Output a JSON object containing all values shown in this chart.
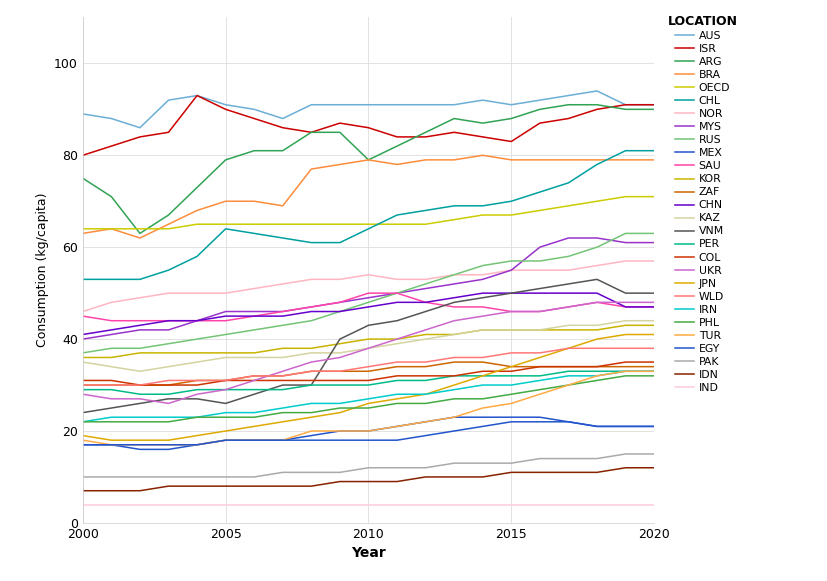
{
  "title": "",
  "xlabel": "Year",
  "ylabel": "Consumption (kg/capita)",
  "xlim": [
    2000,
    2020
  ],
  "ylim": [
    0,
    110
  ],
  "yticks": [
    0,
    20,
    40,
    60,
    80,
    100
  ],
  "xticks": [
    2000,
    2005,
    2010,
    2015,
    2020
  ],
  "background_color": "#ffffff",
  "grid_color": "#dddddd",
  "series": [
    {
      "label": "AUS",
      "color": "#6baed6",
      "data": {
        "2000": 89,
        "2001": 88,
        "2002": 86,
        "2003": 92,
        "2004": 93,
        "2005": 91,
        "2006": 90,
        "2007": 88,
        "2008": 91,
        "2009": 91,
        "2010": 91,
        "2011": 91,
        "2012": 91,
        "2013": 91,
        "2014": 92,
        "2015": 91,
        "2016": 92,
        "2017": 93,
        "2018": 94,
        "2019": 91,
        "2020": 91
      }
    },
    {
      "label": "ISR",
      "color": "#cc0000",
      "data": {
        "2000": 80,
        "2001": 82,
        "2002": 84,
        "2003": 85,
        "2004": 93,
        "2005": 90,
        "2006": 88,
        "2007": 86,
        "2008": 85,
        "2009": 87,
        "2010": 86,
        "2011": 84,
        "2012": 84,
        "2013": 85,
        "2014": 84,
        "2015": 83,
        "2016": 87,
        "2017": 88,
        "2018": 90,
        "2019": 91,
        "2020": 91
      }
    },
    {
      "label": "ARG",
      "color": "#31a354",
      "data": {
        "2000": 75,
        "2001": 71,
        "2002": 63,
        "2003": 67,
        "2004": 73,
        "2005": 79,
        "2006": 81,
        "2007": 81,
        "2008": 85,
        "2009": 85,
        "2010": 79,
        "2011": 82,
        "2012": 85,
        "2013": 88,
        "2014": 87,
        "2015": 88,
        "2016": 90,
        "2017": 91,
        "2018": 91,
        "2019": 90,
        "2020": 90
      }
    },
    {
      "label": "BRA",
      "color": "#fd8d3c",
      "data": {
        "2000": 63,
        "2001": 64,
        "2002": 62,
        "2003": 65,
        "2004": 68,
        "2005": 70,
        "2006": 70,
        "2007": 69,
        "2008": 77,
        "2009": 78,
        "2010": 79,
        "2011": 78,
        "2012": 79,
        "2013": 79,
        "2014": 80,
        "2015": 79,
        "2016": 79,
        "2017": 79,
        "2018": 79,
        "2019": 79,
        "2020": 79
      }
    },
    {
      "label": "OECD",
      "color": "#cccc00",
      "data": {
        "2000": 64,
        "2001": 64,
        "2002": 64,
        "2003": 64,
        "2004": 65,
        "2005": 65,
        "2006": 65,
        "2007": 65,
        "2008": 65,
        "2009": 65,
        "2010": 65,
        "2011": 65,
        "2012": 65,
        "2013": 66,
        "2014": 67,
        "2015": 67,
        "2016": 68,
        "2017": 69,
        "2018": 70,
        "2019": 71,
        "2020": 71
      }
    },
    {
      "label": "CHL",
      "color": "#00a0a0",
      "data": {
        "2000": 53,
        "2001": 53,
        "2002": 53,
        "2003": 55,
        "2004": 58,
        "2005": 64,
        "2006": 63,
        "2007": 62,
        "2008": 61,
        "2009": 61,
        "2010": 64,
        "2011": 67,
        "2012": 68,
        "2013": 69,
        "2014": 69,
        "2015": 70,
        "2016": 72,
        "2017": 74,
        "2018": 78,
        "2019": 81,
        "2020": 81
      }
    },
    {
      "label": "NOR",
      "color": "#ffb6c1",
      "data": {
        "2000": 46,
        "2001": 48,
        "2002": 49,
        "2003": 50,
        "2004": 50,
        "2005": 50,
        "2006": 51,
        "2007": 52,
        "2008": 53,
        "2009": 53,
        "2010": 54,
        "2011": 53,
        "2012": 53,
        "2013": 54,
        "2014": 54,
        "2015": 55,
        "2016": 55,
        "2017": 55,
        "2018": 56,
        "2019": 57,
        "2020": 57
      }
    },
    {
      "label": "MYS",
      "color": "#9933cc",
      "data": {
        "2000": 40,
        "2001": 41,
        "2002": 42,
        "2003": 42,
        "2004": 44,
        "2005": 46,
        "2006": 46,
        "2007": 46,
        "2008": 47,
        "2009": 48,
        "2010": 49,
        "2011": 50,
        "2012": 51,
        "2013": 52,
        "2014": 53,
        "2015": 55,
        "2016": 60,
        "2017": 62,
        "2018": 62,
        "2019": 61,
        "2020": 61
      }
    },
    {
      "label": "RUS",
      "color": "#74c476",
      "data": {
        "2000": 37,
        "2001": 38,
        "2002": 38,
        "2003": 39,
        "2004": 40,
        "2005": 41,
        "2006": 42,
        "2007": 43,
        "2008": 44,
        "2009": 46,
        "2010": 48,
        "2011": 50,
        "2012": 52,
        "2013": 54,
        "2014": 56,
        "2015": 57,
        "2016": 57,
        "2017": 58,
        "2018": 60,
        "2019": 63,
        "2020": 63
      }
    },
    {
      "label": "MEX",
      "color": "#2255cc",
      "data": {
        "2000": 17,
        "2001": 17,
        "2002": 16,
        "2003": 16,
        "2004": 17,
        "2005": 18,
        "2006": 18,
        "2007": 18,
        "2008": 19,
        "2009": 20,
        "2010": 20,
        "2011": 21,
        "2012": 22,
        "2013": 23,
        "2014": 23,
        "2015": 23,
        "2016": 23,
        "2017": 22,
        "2018": 21,
        "2019": 21,
        "2020": 21
      }
    },
    {
      "label": "SAU",
      "color": "#ff44aa",
      "data": {
        "2000": 45,
        "2001": 44,
        "2002": 44,
        "2003": 44,
        "2004": 44,
        "2005": 44,
        "2006": 45,
        "2007": 46,
        "2008": 47,
        "2009": 48,
        "2010": 50,
        "2011": 50,
        "2012": 48,
        "2013": 47,
        "2014": 47,
        "2015": 46,
        "2016": 46,
        "2017": 47,
        "2018": 48,
        "2019": 47,
        "2020": 47
      }
    },
    {
      "label": "KOR",
      "color": "#c8b400",
      "data": {
        "2000": 36,
        "2001": 36,
        "2002": 37,
        "2003": 37,
        "2004": 37,
        "2005": 37,
        "2006": 37,
        "2007": 38,
        "2008": 38,
        "2009": 39,
        "2010": 40,
        "2011": 40,
        "2012": 41,
        "2013": 41,
        "2014": 42,
        "2015": 42,
        "2016": 42,
        "2017": 42,
        "2018": 42,
        "2019": 43,
        "2020": 43
      }
    },
    {
      "label": "ZAF",
      "color": "#cc6600",
      "data": {
        "2000": 30,
        "2001": 30,
        "2002": 30,
        "2003": 30,
        "2004": 31,
        "2005": 31,
        "2006": 32,
        "2007": 32,
        "2008": 33,
        "2009": 33,
        "2010": 33,
        "2011": 34,
        "2012": 34,
        "2013": 35,
        "2014": 35,
        "2015": 34,
        "2016": 34,
        "2017": 34,
        "2018": 34,
        "2019": 34,
        "2020": 34
      }
    },
    {
      "label": "CHN",
      "color": "#6600cc",
      "data": {
        "2000": 41,
        "2001": 42,
        "2002": 43,
        "2003": 44,
        "2004": 44,
        "2005": 45,
        "2006": 45,
        "2007": 45,
        "2008": 46,
        "2009": 46,
        "2010": 47,
        "2011": 48,
        "2012": 48,
        "2013": 49,
        "2014": 50,
        "2015": 50,
        "2016": 50,
        "2017": 50,
        "2018": 50,
        "2019": 47,
        "2020": 47
      }
    },
    {
      "label": "KAZ",
      "color": "#d4d4a0",
      "data": {
        "2000": 35,
        "2001": 34,
        "2002": 33,
        "2003": 34,
        "2004": 35,
        "2005": 36,
        "2006": 36,
        "2007": 36,
        "2008": 37,
        "2009": 37,
        "2010": 38,
        "2011": 39,
        "2012": 40,
        "2013": 41,
        "2014": 42,
        "2015": 42,
        "2016": 42,
        "2017": 43,
        "2018": 43,
        "2019": 44,
        "2020": 44
      }
    },
    {
      "label": "VNM",
      "color": "#555555",
      "data": {
        "2000": 24,
        "2001": 25,
        "2002": 26,
        "2003": 27,
        "2004": 27,
        "2005": 26,
        "2006": 28,
        "2007": 30,
        "2008": 30,
        "2009": 40,
        "2010": 43,
        "2011": 44,
        "2012": 46,
        "2013": 48,
        "2014": 49,
        "2015": 50,
        "2016": 51,
        "2017": 52,
        "2018": 53,
        "2019": 50,
        "2020": 50
      }
    },
    {
      "label": "PER",
      "color": "#00bb88",
      "data": {
        "2000": 29,
        "2001": 29,
        "2002": 28,
        "2003": 28,
        "2004": 29,
        "2005": 29,
        "2006": 29,
        "2007": 29,
        "2008": 30,
        "2009": 30,
        "2010": 30,
        "2011": 31,
        "2012": 31,
        "2013": 32,
        "2014": 32,
        "2015": 32,
        "2016": 32,
        "2017": 33,
        "2018": 33,
        "2019": 33,
        "2020": 33
      }
    },
    {
      "label": "COL",
      "color": "#cc3300",
      "data": {
        "2000": 31,
        "2001": 31,
        "2002": 30,
        "2003": 30,
        "2004": 30,
        "2005": 31,
        "2006": 31,
        "2007": 31,
        "2008": 31,
        "2009": 31,
        "2010": 31,
        "2011": 32,
        "2012": 32,
        "2013": 32,
        "2014": 33,
        "2015": 33,
        "2016": 34,
        "2017": 34,
        "2018": 34,
        "2019": 35,
        "2020": 35
      }
    },
    {
      "label": "UKR",
      "color": "#cc66cc",
      "data": {
        "2000": 28,
        "2001": 27,
        "2002": 27,
        "2003": 26,
        "2004": 28,
        "2005": 29,
        "2006": 31,
        "2007": 33,
        "2008": 35,
        "2009": 36,
        "2010": 38,
        "2011": 40,
        "2012": 42,
        "2013": 44,
        "2014": 45,
        "2015": 46,
        "2016": 46,
        "2017": 47,
        "2018": 48,
        "2019": 48,
        "2020": 48
      }
    },
    {
      "label": "JPN",
      "color": "#ddaa00",
      "data": {
        "2000": 19,
        "2001": 18,
        "2002": 18,
        "2003": 18,
        "2004": 19,
        "2005": 20,
        "2006": 21,
        "2007": 22,
        "2008": 23,
        "2009": 24,
        "2010": 26,
        "2011": 27,
        "2012": 28,
        "2013": 30,
        "2014": 32,
        "2015": 34,
        "2016": 36,
        "2017": 38,
        "2018": 40,
        "2019": 41,
        "2020": 41
      }
    },
    {
      "label": "WLD",
      "color": "#ff7777",
      "data": {
        "2000": 30,
        "2001": 30,
        "2002": 30,
        "2003": 31,
        "2004": 31,
        "2005": 31,
        "2006": 32,
        "2007": 32,
        "2008": 33,
        "2009": 33,
        "2010": 34,
        "2011": 35,
        "2012": 35,
        "2013": 36,
        "2014": 36,
        "2015": 37,
        "2016": 37,
        "2017": 38,
        "2018": 38,
        "2019": 38,
        "2020": 38
      }
    },
    {
      "label": "IRN",
      "color": "#00cccc",
      "data": {
        "2000": 22,
        "2001": 23,
        "2002": 23,
        "2003": 23,
        "2004": 23,
        "2005": 24,
        "2006": 24,
        "2007": 25,
        "2008": 26,
        "2009": 26,
        "2010": 27,
        "2011": 28,
        "2012": 28,
        "2013": 29,
        "2014": 30,
        "2015": 30,
        "2016": 31,
        "2017": 32,
        "2018": 32,
        "2019": 33,
        "2020": 33
      }
    },
    {
      "label": "PHL",
      "color": "#44aa44",
      "data": {
        "2000": 22,
        "2001": 22,
        "2002": 22,
        "2003": 22,
        "2004": 23,
        "2005": 23,
        "2006": 23,
        "2007": 24,
        "2008": 24,
        "2009": 25,
        "2010": 25,
        "2011": 26,
        "2012": 26,
        "2013": 27,
        "2014": 27,
        "2015": 28,
        "2016": 29,
        "2017": 30,
        "2018": 31,
        "2019": 32,
        "2020": 32
      }
    },
    {
      "label": "TUR",
      "color": "#ffaa44",
      "data": {
        "2000": 18,
        "2001": 17,
        "2002": 17,
        "2003": 17,
        "2004": 17,
        "2005": 18,
        "2006": 18,
        "2007": 18,
        "2008": 20,
        "2009": 20,
        "2010": 20,
        "2011": 21,
        "2012": 22,
        "2013": 23,
        "2014": 25,
        "2015": 26,
        "2016": 28,
        "2017": 30,
        "2018": 32,
        "2019": 33,
        "2020": 33
      }
    },
    {
      "label": "EGY",
      "color": "#2255cc",
      "data": {
        "2000": 17,
        "2001": 17,
        "2002": 17,
        "2003": 17,
        "2004": 17,
        "2005": 18,
        "2006": 18,
        "2007": 18,
        "2008": 18,
        "2009": 18,
        "2010": 18,
        "2011": 18,
        "2012": 19,
        "2013": 20,
        "2014": 21,
        "2015": 22,
        "2016": 22,
        "2017": 22,
        "2018": 21,
        "2019": 21,
        "2020": 21
      }
    },
    {
      "label": "PAK",
      "color": "#aaaaaa",
      "data": {
        "2000": 10,
        "2001": 10,
        "2002": 10,
        "2003": 10,
        "2004": 10,
        "2005": 10,
        "2006": 10,
        "2007": 11,
        "2008": 11,
        "2009": 11,
        "2010": 12,
        "2011": 12,
        "2012": 12,
        "2013": 13,
        "2014": 13,
        "2015": 13,
        "2016": 14,
        "2017": 14,
        "2018": 14,
        "2019": 15,
        "2020": 15
      }
    },
    {
      "label": "IDN",
      "color": "#882200",
      "data": {
        "2000": 7,
        "2001": 7,
        "2002": 7,
        "2003": 8,
        "2004": 8,
        "2005": 8,
        "2006": 8,
        "2007": 8,
        "2008": 8,
        "2009": 9,
        "2010": 9,
        "2011": 9,
        "2012": 10,
        "2013": 10,
        "2014": 10,
        "2015": 11,
        "2016": 11,
        "2017": 11,
        "2018": 11,
        "2019": 12,
        "2020": 12
      }
    },
    {
      "label": "IND",
      "color": "#ffccdd",
      "data": {
        "2000": 4,
        "2001": 4,
        "2002": 4,
        "2003": 4,
        "2004": 4,
        "2005": 4,
        "2006": 4,
        "2007": 4,
        "2008": 4,
        "2009": 4,
        "2010": 4,
        "2011": 4,
        "2012": 4,
        "2013": 4,
        "2014": 4,
        "2015": 4,
        "2016": 4,
        "2017": 4,
        "2018": 4,
        "2019": 4,
        "2020": 4
      }
    }
  ]
}
